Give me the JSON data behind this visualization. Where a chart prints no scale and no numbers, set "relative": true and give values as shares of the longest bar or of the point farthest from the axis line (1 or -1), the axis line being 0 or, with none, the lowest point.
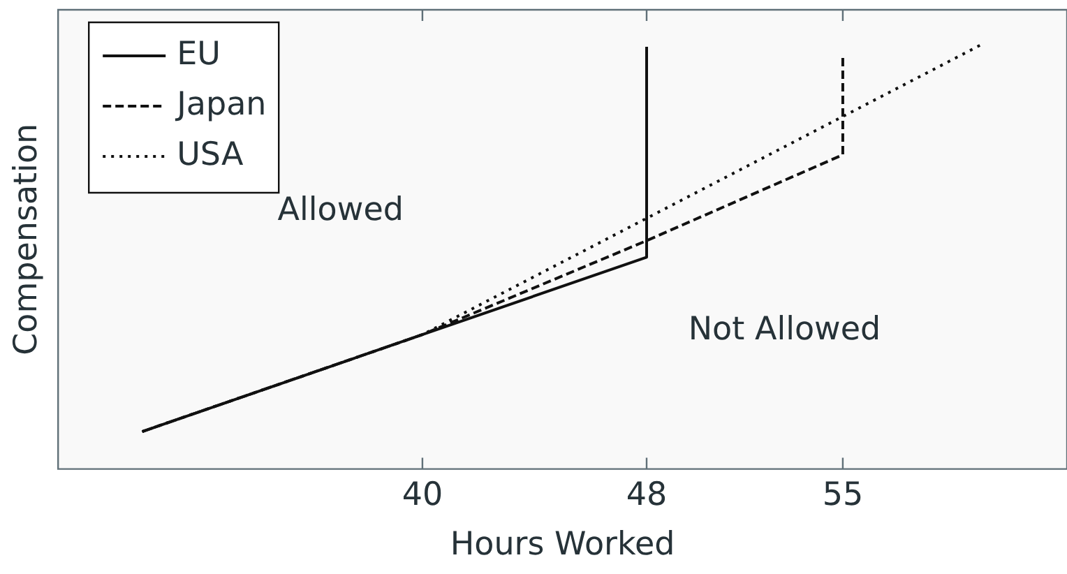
{
  "chart_data": {
    "type": "line",
    "xlabel": "Hours Worked",
    "ylabel": "Compensation",
    "relative": true,
    "xlim": [
      27,
      63
    ],
    "xticks": [
      40,
      48,
      55
    ],
    "tick_labels": "x",
    "grid": false,
    "legend": "top left",
    "marker": "none",
    "series": [
      {
        "name": "EU",
        "color": "#111111",
        "line_style": "solid",
        "x": [
          30,
          40,
          48,
          48
        ],
        "values": [
          0.088,
          0.316,
          0.498,
          0.993
        ]
      },
      {
        "name": "Japan",
        "color": "#111111",
        "line_style": "dashed",
        "x": [
          30,
          40,
          48,
          55,
          55
        ],
        "values": [
          0.088,
          0.316,
          0.537,
          0.739,
          0.971
        ]
      },
      {
        "name": "USA",
        "color": "#111111",
        "line_style": "dotted",
        "x": [
          30,
          40,
          60
        ],
        "values": [
          0.088,
          0.316,
          1.0
        ]
      }
    ],
    "annotations": [
      "Allowed",
      "Not Allowed"
    ]
  }
}
